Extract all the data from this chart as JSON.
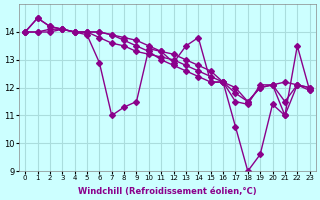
{
  "xlabel": "Windchill (Refroidissement éolien,°C)",
  "x": [
    0,
    1,
    2,
    3,
    4,
    5,
    6,
    7,
    8,
    9,
    10,
    11,
    12,
    13,
    14,
    15,
    16,
    17,
    18,
    19,
    20,
    21,
    22,
    23
  ],
  "series": [
    [
      14.0,
      14.5,
      14.2,
      14.1,
      14.0,
      13.9,
      12.9,
      11.0,
      11.3,
      11.5,
      13.4,
      13.3,
      12.9,
      13.5,
      13.8,
      12.2,
      12.2,
      10.6,
      9.0,
      9.6,
      11.4,
      11.0,
      13.5,
      11.9
    ],
    [
      14.0,
      14.5,
      14.2,
      14.1,
      14.0,
      14.0,
      14.0,
      13.9,
      13.8,
      13.7,
      13.5,
      13.3,
      13.2,
      13.0,
      12.8,
      12.6,
      12.2,
      12.0,
      11.5,
      12.0,
      12.1,
      12.2,
      12.1,
      12.0
    ],
    [
      14.0,
      14.0,
      14.0,
      14.1,
      14.0,
      14.0,
      13.8,
      13.6,
      13.5,
      13.3,
      13.2,
      13.1,
      13.0,
      12.8,
      12.6,
      12.4,
      12.2,
      11.8,
      11.5,
      12.0,
      12.1,
      11.5,
      12.1,
      12.0
    ],
    [
      14.0,
      14.0,
      14.1,
      14.1,
      14.0,
      14.0,
      14.0,
      13.9,
      13.7,
      13.5,
      13.3,
      13.0,
      12.8,
      12.6,
      12.4,
      12.2,
      12.2,
      11.5,
      11.4,
      12.1,
      12.1,
      11.0,
      12.1,
      11.9
    ]
  ],
  "line_color": "#8B008B",
  "marker": "D",
  "markersize": 3,
  "linewidth": 1.0,
  "bg_color": "#ccffff",
  "grid_color": "#aadddd",
  "ylim": [
    9,
    15
  ],
  "yticks": [
    9,
    10,
    11,
    12,
    13,
    14
  ],
  "xticks": [
    0,
    1,
    2,
    3,
    4,
    5,
    6,
    7,
    8,
    9,
    10,
    11,
    12,
    13,
    14,
    15,
    16,
    17,
    18,
    19,
    20,
    21,
    22,
    23
  ],
  "xticklabels": [
    "0",
    "1",
    "2",
    "3",
    "4",
    "5",
    "6",
    "7",
    "8",
    "9",
    "10",
    "11",
    "12",
    "13",
    "14",
    "15",
    "16",
    "17",
    "18",
    "19",
    "20",
    "21",
    "22",
    "23"
  ]
}
